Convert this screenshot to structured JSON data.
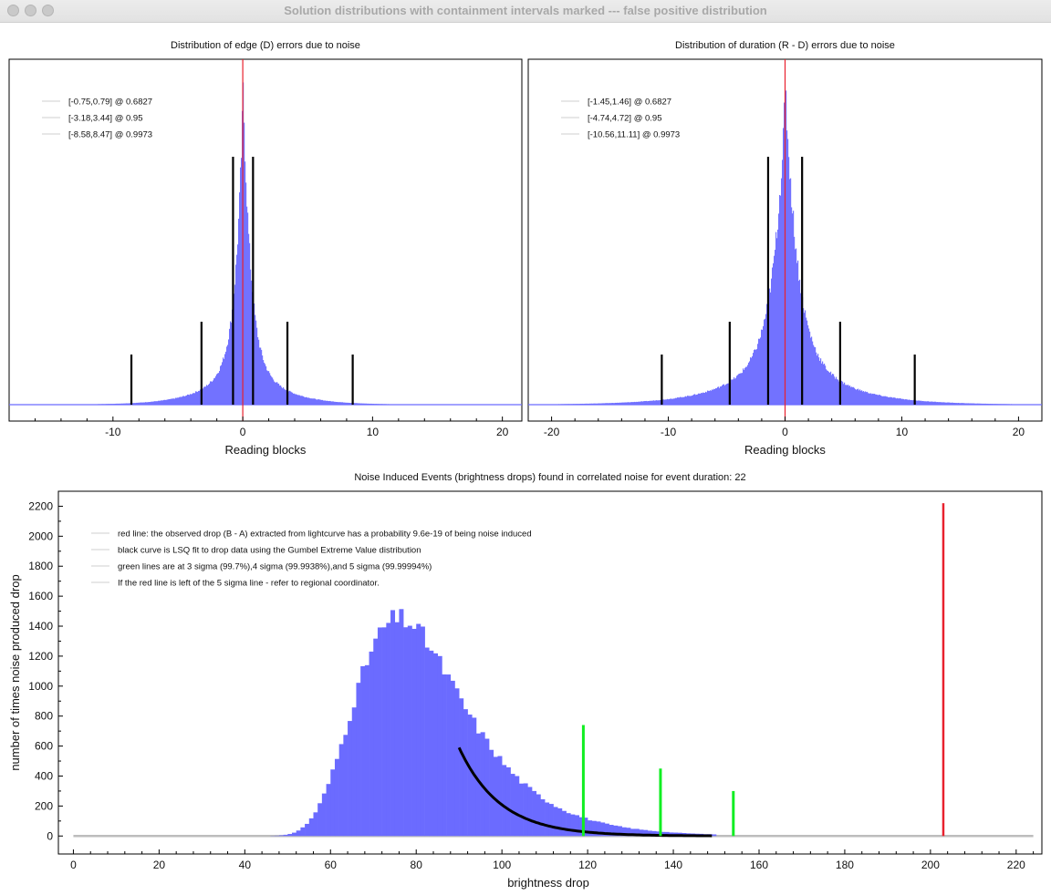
{
  "window": {
    "title": "Solution distributions with containment intervals marked --- false positive distribution"
  },
  "colors": {
    "histogram": "#6b6bff",
    "observed_line": "#e8212e",
    "interval_bars": "#000000",
    "sigma_lines": "#11ee22",
    "fit_curve": "#000000",
    "baseline": "#bdbdbd"
  },
  "chart_data": [
    {
      "type": "bar",
      "title": "Distribution of edge (D) errors due to noise",
      "xlabel": "Reading blocks",
      "xlim": [
        -18,
        21.5
      ],
      "x_ticks": [
        -10,
        0,
        10,
        20
      ],
      "y_axis_shown": false,
      "histogram": {
        "center": 0.0,
        "scale": 0.55,
        "tail": 0.18,
        "tail_scale": 2.4,
        "peak": 1.0
      },
      "legend": [
        "[-0.75,0.79] @ 0.6827",
        "[-3.18,3.44] @ 0.95",
        "[-8.58,8.47] @ 0.9973"
      ],
      "intervals": [
        {
          "low": -0.75,
          "high": 0.79,
          "level": 0.6827
        },
        {
          "low": -3.18,
          "high": 3.44,
          "level": 0.95
        },
        {
          "low": -8.58,
          "high": 8.47,
          "level": 0.9973
        }
      ],
      "center_line": 0
    },
    {
      "type": "bar",
      "title": "Distribution of duration (R - D) errors due to noise",
      "xlabel": "Reading blocks",
      "xlim": [
        -22,
        22
      ],
      "x_ticks": [
        -20,
        -10,
        0,
        10,
        20
      ],
      "y_axis_shown": false,
      "histogram": {
        "center": 0.0,
        "scale": 1.0,
        "tail": 0.22,
        "tail_scale": 4.0,
        "peak": 1.0
      },
      "legend": [
        "[-1.45,1.46] @ 0.6827",
        "[-4.74,4.72] @ 0.95",
        "[-10.56,11.11] @ 0.9973"
      ],
      "intervals": [
        {
          "low": -1.45,
          "high": 1.46,
          "level": 0.6827
        },
        {
          "low": -4.74,
          "high": 4.72,
          "level": 0.95
        },
        {
          "low": -10.56,
          "high": 11.11,
          "level": 0.9973
        }
      ],
      "center_line": 0
    },
    {
      "type": "bar",
      "title": "Noise Induced Events (brightness drops) found in correlated noise for event duration: 22",
      "xlabel": "brightness drop",
      "ylabel": "number of times noise produced drop",
      "xlim": [
        -3.5,
        226
      ],
      "ylim": [
        -120,
        2300
      ],
      "x_ticks": [
        0,
        20,
        40,
        60,
        80,
        100,
        120,
        140,
        160,
        180,
        200,
        220
      ],
      "y_ticks": [
        0,
        200,
        400,
        600,
        800,
        1000,
        1200,
        1400,
        1600,
        1800,
        2000,
        2200
      ],
      "histogram": {
        "bin_width": 1,
        "x_min": 40,
        "x_max": 150,
        "mode": 76,
        "peak": 1450,
        "gumbel_beta": 12.5
      },
      "baseline_range": [
        0,
        224
      ],
      "fit_curve": {
        "distribution": "Gumbel",
        "x_start": 90,
        "x_end": 149,
        "y_start": 590,
        "decay": 9.6
      },
      "sigma_lines": [
        {
          "label": "3 sigma",
          "x": 119,
          "height": 740
        },
        {
          "label": "4 sigma",
          "x": 137,
          "height": 450
        },
        {
          "label": "5 sigma",
          "x": 154,
          "height": 300
        }
      ],
      "observed_line": {
        "x": 203,
        "height": 2220
      },
      "legend": [
        "red line: the observed drop (B - A) extracted from lightcurve has a probability 9.6e-19 of being noise induced",
        "black curve is LSQ fit to drop data using the Gumbel Extreme Value distribution",
        "green lines are at 3 sigma (99.7%),4 sigma (99.9938%),and 5 sigma (99.99994%)",
        "If the red line is left of the 5 sigma line - refer to regional coordinator."
      ]
    }
  ]
}
